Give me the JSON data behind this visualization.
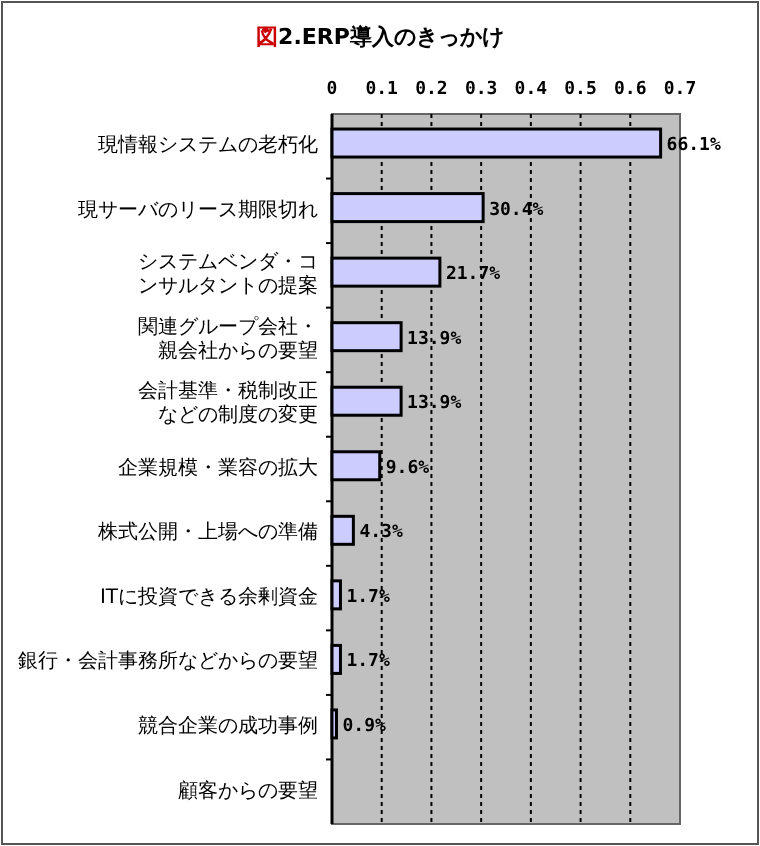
{
  "chart_data": {
    "type": "bar",
    "orientation": "horizontal",
    "title": "図2.ERP導入のきっかけ",
    "categories": [
      "現情報システムの老朽化",
      "現サーバのリース期限切れ",
      "システムベンダ・コンサルタントの提案",
      "関連グループ会社・親会社からの要望",
      "会計基準・税制改正などの制度の変更",
      "企業規模・業容の拡大",
      "株式公開・上場への準備",
      "ITに投資できる余剰資金",
      "銀行・会計事務所などからの要望",
      "競合企業の成功事例",
      "顧客からの要望"
    ],
    "values": [
      0.661,
      0.304,
      0.217,
      0.139,
      0.139,
      0.096,
      0.043,
      0.017,
      0.017,
      0.009,
      null
    ],
    "value_labels": [
      "66.1%",
      "30.4%",
      "21.7%",
      "13.9%",
      "13.9%",
      "9.6%",
      "4.3%",
      "1.7%",
      "1.7%",
      "0.9%",
      null
    ],
    "color": "#ccccff",
    "xlim": [
      0,
      0.7
    ],
    "xticks": [
      0,
      0.1,
      0.2,
      0.3,
      0.4,
      0.5,
      0.6,
      0.7
    ],
    "grid": "x"
  }
}
